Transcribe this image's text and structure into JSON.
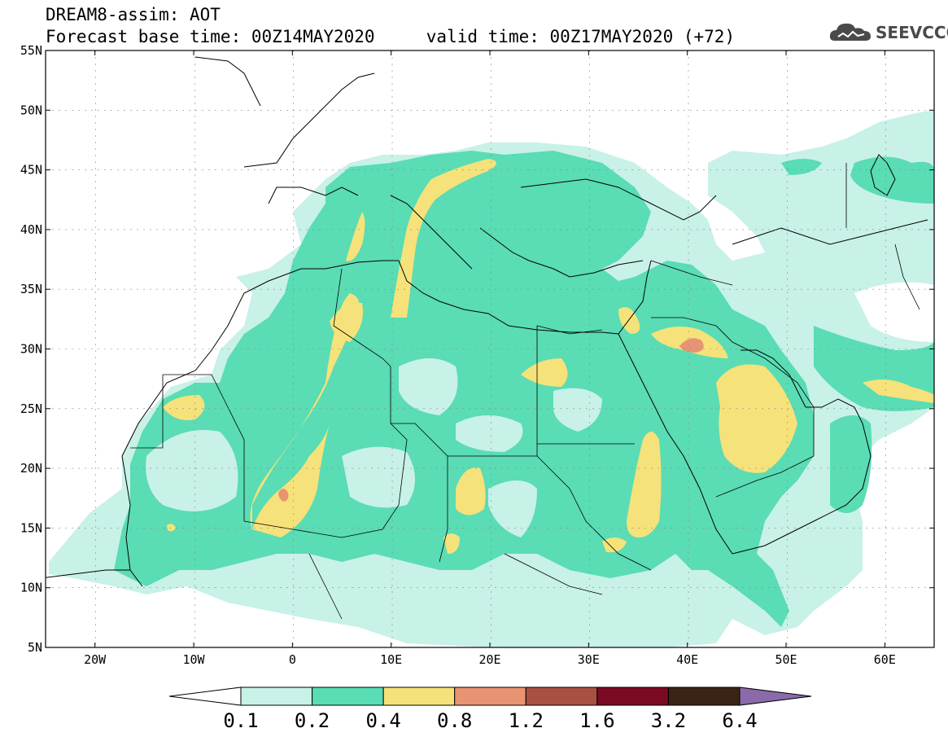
{
  "header": {
    "title_line1": "DREAM8-assim: AOT",
    "title_line2": "Forecast base time: 00Z14MAY2020     valid time: 00Z17MAY2020 (+72)",
    "brand": "SEEVCCC",
    "brand_icon": "cloud-logo-icon"
  },
  "map": {
    "lat_labels": [
      "55N",
      "50N",
      "45N",
      "40N",
      "35N",
      "30N",
      "25N",
      "20N",
      "15N",
      "10N",
      "5N"
    ],
    "lon_labels": [
      "20W",
      "10W",
      "0",
      "10E",
      "20E",
      "30E",
      "40E",
      "50E",
      "60E"
    ],
    "region": "North Africa, Europe, Middle East",
    "variable": "AOT"
  },
  "legend": {
    "levels": [
      "0.1",
      "0.2",
      "0.4",
      "0.8",
      "1.2",
      "1.6",
      "3.2",
      "6.4"
    ],
    "colors": [
      "#ffffff",
      "#c8f1e8",
      "#5adcb5",
      "#f5e27a",
      "#e89472",
      "#a85042",
      "#7a0a22",
      "#3a2415",
      "#8a6aa8"
    ]
  }
}
